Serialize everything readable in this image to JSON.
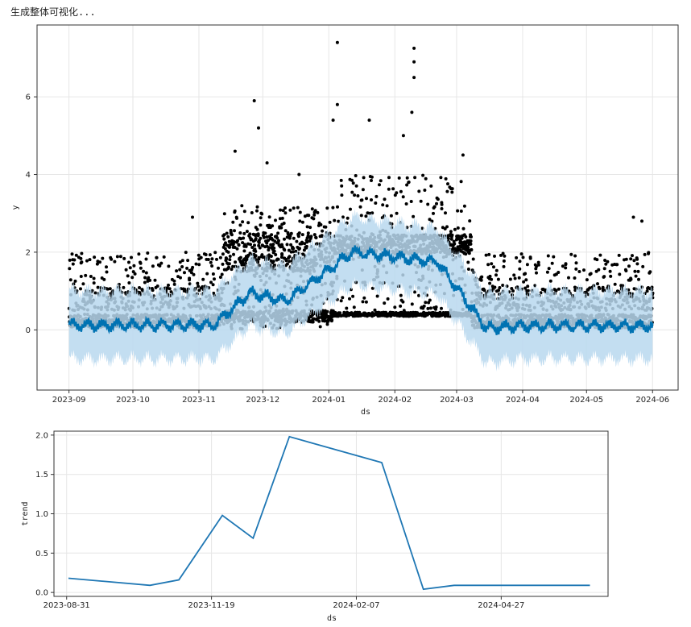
{
  "status_text": "生成整体可视化...",
  "chart_data": [
    {
      "type": "scatter",
      "xlabel": "ds",
      "ylabel": "y",
      "ylim": [
        -1.55,
        7.85
      ],
      "xlim": [
        "2023-08-17",
        "2024-06-13"
      ],
      "grid": true,
      "x_ticks": [
        "2023-09",
        "2023-10",
        "2023-11",
        "2023-12",
        "2024-01",
        "2024-02",
        "2024-03",
        "2024-04",
        "2024-05",
        "2024-06"
      ],
      "y_ticks": [
        0,
        2,
        4,
        6
      ],
      "colors": {
        "observed": "#000000",
        "forecast": "#0072B2",
        "interval": "#b8d8ee"
      },
      "forecast_segments": [
        {
          "x": "2023-09-01",
          "yhat": 0.12,
          "lower": -0.75,
          "upper": 1.0
        },
        {
          "x": "2023-11-08",
          "yhat": 0.12,
          "lower": -0.75,
          "upper": 1.0
        },
        {
          "x": "2023-11-25",
          "yhat": 0.95,
          "lower": 0.1,
          "upper": 1.8
        },
        {
          "x": "2023-12-12",
          "yhat": 0.75,
          "lower": -0.1,
          "upper": 1.65
        },
        {
          "x": "2024-01-12",
          "yhat": 2.0,
          "lower": 1.15,
          "upper": 2.9
        },
        {
          "x": "2024-02-21",
          "yhat": 1.75,
          "lower": 0.9,
          "upper": 2.6
        },
        {
          "x": "2024-03-15",
          "yhat": 0.05,
          "lower": -0.85,
          "upper": 0.95
        },
        {
          "x": "2024-04-01",
          "yhat": 0.1,
          "lower": -0.75,
          "upper": 1.0
        },
        {
          "x": "2024-06-01",
          "yhat": 0.1,
          "lower": -0.75,
          "upper": 1.0
        }
      ],
      "observed_points": [
        [
          "2023-11-27",
          5.9
        ],
        [
          "2023-11-29",
          5.2
        ],
        [
          "2024-01-05",
          5.8
        ],
        [
          "2024-01-03",
          5.4
        ],
        [
          "2024-01-20",
          5.4
        ],
        [
          "2024-02-10",
          7.25
        ],
        [
          "2024-02-10",
          6.9
        ],
        [
          "2024-02-10",
          6.5
        ],
        [
          "2024-01-05",
          7.4
        ],
        [
          "2024-02-09",
          5.6
        ],
        [
          "2024-02-05",
          5.0
        ],
        [
          "2023-11-18",
          4.6
        ],
        [
          "2023-12-03",
          4.3
        ],
        [
          "2023-12-18",
          4.0
        ],
        [
          "2024-03-04",
          4.5
        ],
        [
          "2023-10-29",
          2.9
        ],
        [
          "2024-05-23",
          2.9
        ],
        [
          "2024-05-27",
          2.8
        ]
      ]
    },
    {
      "type": "line",
      "xlabel": "ds",
      "ylabel": "trend",
      "ylim": [
        -0.05,
        2.05
      ],
      "xlim": [
        "2023-08-24",
        "2024-06-25"
      ],
      "grid": true,
      "x_ticks": [
        "2023-08-31",
        "2023-11-19",
        "2024-02-07",
        "2024-04-27"
      ],
      "y_ticks": [
        "0.0",
        "0.5",
        "1.0",
        "1.5",
        "2.0"
      ],
      "color": "#1f77b4",
      "x": [
        "2023-09-01",
        "2023-10-16",
        "2023-11-01",
        "2023-11-25",
        "2023-12-12",
        "2024-01-01",
        "2024-02-21",
        "2024-03-15",
        "2024-04-01",
        "2024-06-15"
      ],
      "values": [
        0.18,
        0.09,
        0.16,
        0.98,
        0.69,
        1.98,
        1.65,
        0.04,
        0.09,
        0.09
      ]
    }
  ]
}
